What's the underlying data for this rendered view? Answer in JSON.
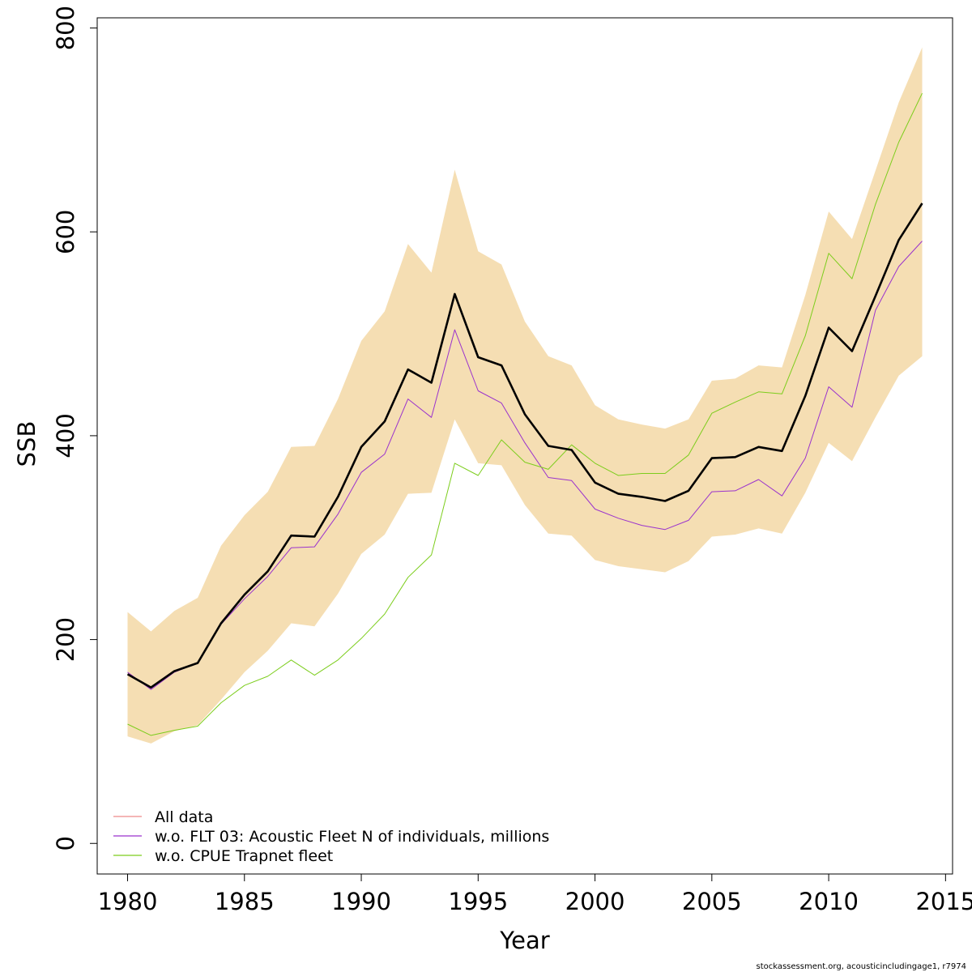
{
  "chart_data": {
    "type": "line",
    "xlabel": "Year",
    "ylabel": "SSB",
    "xlim": [
      1978.7,
      2015.3
    ],
    "ylim": [
      -30,
      810
    ],
    "xticks": [
      1980,
      1985,
      1990,
      1995,
      2000,
      2005,
      2010,
      2015
    ],
    "yticks": [
      0,
      200,
      400,
      600,
      800
    ],
    "x": [
      1980,
      1981,
      1982,
      1983,
      1984,
      1985,
      1986,
      1987,
      1988,
      1989,
      1990,
      1991,
      1992,
      1993,
      1994,
      1995,
      1996,
      1997,
      1998,
      1999,
      2000,
      2001,
      2002,
      2003,
      2004,
      2005,
      2006,
      2007,
      2008,
      2009,
      2010,
      2011,
      2012,
      2013,
      2014
    ],
    "band": {
      "color": "#f5deb3",
      "lower": [
        105,
        98,
        110,
        116,
        141,
        168,
        189,
        216,
        213,
        245,
        284,
        303,
        343,
        344,
        416,
        373,
        371,
        332,
        304,
        302,
        278,
        272,
        269,
        266,
        277,
        301,
        303,
        309,
        304,
        344,
        393,
        375,
        418,
        459,
        478
      ],
      "upper": [
        227,
        208,
        228,
        241,
        292,
        322,
        345,
        389,
        390,
        436,
        493,
        522,
        588,
        560,
        661,
        581,
        568,
        512,
        478,
        469,
        430,
        416,
        411,
        407,
        416,
        454,
        456,
        469,
        467,
        538,
        620,
        593,
        660,
        727,
        781
      ]
    },
    "main": {
      "name": "All data",
      "color": "#000000",
      "values": [
        166,
        153,
        169,
        177,
        216,
        244,
        267,
        302,
        301,
        340,
        389,
        414,
        465,
        452,
        539,
        477,
        469,
        421,
        390,
        386,
        354,
        343,
        340,
        336,
        346,
        378,
        379,
        389,
        385,
        439,
        506,
        483,
        537,
        592,
        628
      ]
    },
    "series": [
      {
        "name": "w.o. FLT 03: Acoustic Fleet   N of individuals, millions",
        "color": "#9a32cd",
        "values": [
          168,
          151,
          168,
          177,
          215,
          240,
          262,
          290,
          291,
          323,
          364,
          382,
          436,
          418,
          504,
          444,
          432,
          393,
          359,
          356,
          328,
          319,
          312,
          308,
          317,
          345,
          346,
          357,
          341,
          378,
          448,
          428,
          523,
          566,
          591
        ]
      },
      {
        "name": "w.o. CPUE Trapnet fleet",
        "color": "#7ccd1c",
        "values": [
          117,
          106,
          111,
          115,
          138,
          155,
          164,
          180,
          165,
          180,
          201,
          225,
          261,
          283,
          373,
          361,
          396,
          374,
          367,
          391,
          373,
          361,
          363,
          363,
          381,
          422,
          433,
          443,
          441,
          498,
          579,
          554,
          627,
          688,
          736
        ]
      }
    ],
    "legend": {
      "position": "bottom-left",
      "items": [
        {
          "label": "All data",
          "color": "#ee8a8a"
        },
        {
          "label": "w.o. FLT 03: Acoustic Fleet   N of individuals, millions",
          "color": "#9a32cd"
        },
        {
          "label": "w.o. CPUE Trapnet fleet",
          "color": "#7ccd1c"
        }
      ]
    },
    "footer": "stockassessment.org, acousticincludingage1, r7974"
  }
}
